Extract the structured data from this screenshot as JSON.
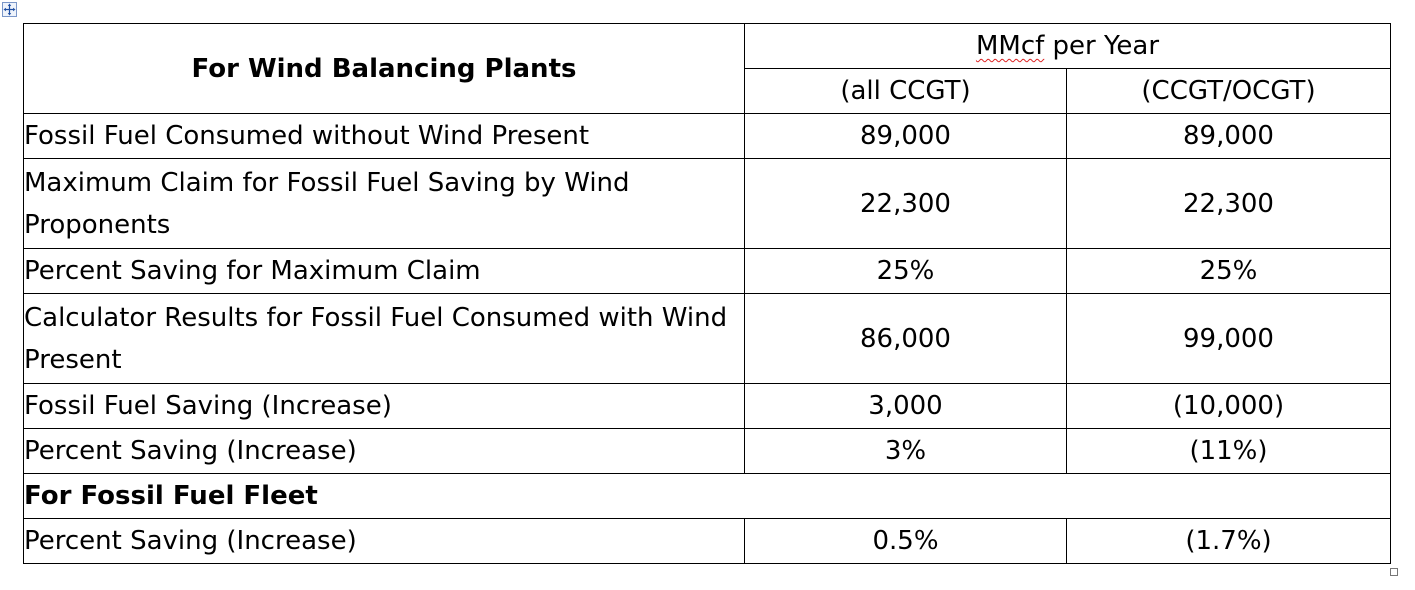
{
  "table": {
    "header": {
      "row_label": "For Wind Balancing Plants",
      "group_unit": "MMcf",
      "group_suffix": " per Year",
      "columns": [
        "(all CCGT)",
        "(CCGT/OCGT)"
      ]
    },
    "rows": [
      {
        "label": "Fossil Fuel Consumed without Wind Present",
        "values": [
          "89,000",
          "89,000"
        ]
      },
      {
        "label": "Maximum Claim for Fossil Fuel Saving by Wind Proponents",
        "values": [
          "22,300",
          "22,300"
        ]
      },
      {
        "label": "Percent Saving for Maximum Claim",
        "values": [
          "25%",
          "25%"
        ]
      },
      {
        "label": "Calculator Results for Fossil Fuel Consumed with Wind Present",
        "values": [
          "86,000",
          "99,000"
        ]
      },
      {
        "label": "Fossil Fuel Saving (Increase)",
        "values": [
          "3,000",
          "(10,000)"
        ]
      },
      {
        "label": "Percent Saving (Increase)",
        "values": [
          "3%",
          "(11%)"
        ]
      }
    ],
    "section": {
      "label": "For Fossil Fuel Fleet",
      "rows": [
        {
          "label": "Percent Saving (Increase)",
          "values": [
            "0.5%",
            "(1.7%)"
          ]
        }
      ]
    }
  },
  "icons": {
    "move_handle": "move-arrows-icon",
    "resize_handle": "resize-square-icon"
  }
}
